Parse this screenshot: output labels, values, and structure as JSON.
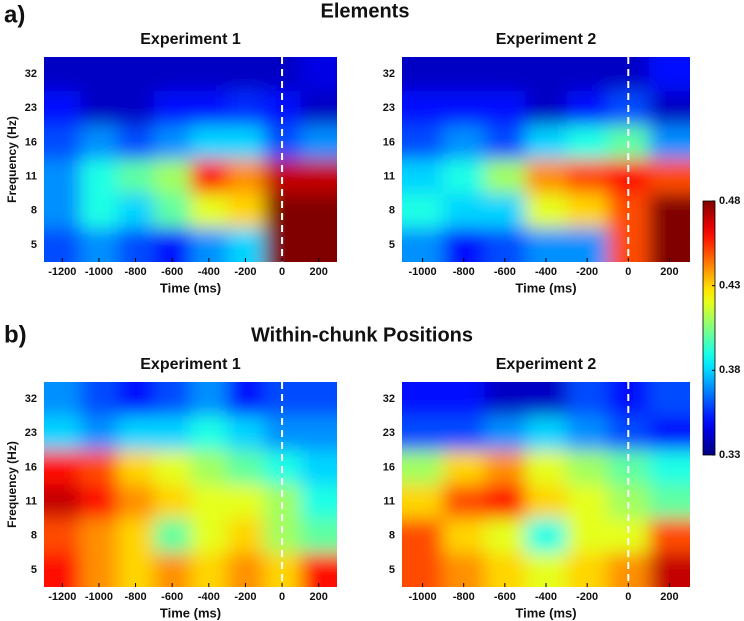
{
  "sections": [
    {
      "label": "a)",
      "title": "Elements"
    },
    {
      "label": "b)",
      "title": "Within-chunk Positions"
    }
  ],
  "colorbar": {
    "lim": [
      0.33,
      0.48
    ],
    "ticks": [
      0.33,
      0.38,
      0.43,
      0.48
    ],
    "colormap": "jet"
  },
  "chart_data": [
    {
      "type": "heatmap",
      "title": "Experiment 1",
      "xlabel": "Time (ms)",
      "ylabel": "Frequency (Hz)",
      "xlim": [
        -1300,
        300
      ],
      "xticks": [
        -1200,
        -1000,
        -800,
        -600,
        -400,
        -200,
        0,
        200
      ],
      "vline": 0,
      "x": [
        -1200,
        -1000,
        -800,
        -600,
        -400,
        -200,
        0,
        200
      ],
      "y": [
        32,
        23,
        16,
        11,
        8,
        5
      ],
      "z": [
        [
          0.34,
          0.34,
          0.34,
          0.34,
          0.34,
          0.34,
          0.34,
          0.345
        ],
        [
          0.35,
          0.34,
          0.34,
          0.35,
          0.35,
          0.355,
          0.35,
          0.34
        ],
        [
          0.36,
          0.37,
          0.36,
          0.37,
          0.38,
          0.38,
          0.36,
          0.37
        ],
        [
          0.37,
          0.39,
          0.4,
          0.41,
          0.46,
          0.44,
          0.47,
          0.47
        ],
        [
          0.37,
          0.39,
          0.38,
          0.4,
          0.42,
          0.43,
          0.48,
          0.48
        ],
        [
          0.36,
          0.37,
          0.36,
          0.35,
          0.37,
          0.38,
          0.48,
          0.48
        ]
      ]
    },
    {
      "type": "heatmap",
      "title": "Experiment 2",
      "xlabel": "Time (ms)",
      "xlim": [
        -1100,
        300
      ],
      "xticks": [
        -1000,
        -800,
        -600,
        -400,
        -200,
        0,
        200
      ],
      "vline": 0,
      "x": [
        -1000,
        -800,
        -600,
        -400,
        -200,
        0,
        200
      ],
      "y": [
        32,
        23,
        16,
        11,
        8,
        5
      ],
      "z": [
        [
          0.34,
          0.34,
          0.34,
          0.34,
          0.34,
          0.34,
          0.35
        ],
        [
          0.35,
          0.35,
          0.35,
          0.34,
          0.35,
          0.36,
          0.34
        ],
        [
          0.36,
          0.37,
          0.36,
          0.38,
          0.39,
          0.4,
          0.37
        ],
        [
          0.38,
          0.39,
          0.41,
          0.44,
          0.45,
          0.46,
          0.45
        ],
        [
          0.39,
          0.38,
          0.38,
          0.42,
          0.43,
          0.45,
          0.48
        ],
        [
          0.37,
          0.35,
          0.36,
          0.37,
          0.37,
          0.45,
          0.48
        ]
      ]
    },
    {
      "type": "heatmap",
      "title": "Experiment 1",
      "xlabel": "Time (ms)",
      "ylabel": "Frequency (Hz)",
      "xlim": [
        -1300,
        300
      ],
      "xticks": [
        -1200,
        -1000,
        -800,
        -600,
        -400,
        -200,
        0,
        200
      ],
      "vline": 0,
      "x": [
        -1200,
        -1000,
        -800,
        -600,
        -400,
        -200,
        0,
        200
      ],
      "y": [
        32,
        23,
        16,
        11,
        8,
        5
      ],
      "z": [
        [
          0.37,
          0.36,
          0.35,
          0.36,
          0.37,
          0.35,
          0.36,
          0.36
        ],
        [
          0.38,
          0.37,
          0.38,
          0.38,
          0.39,
          0.38,
          0.37,
          0.37
        ],
        [
          0.46,
          0.45,
          0.43,
          0.42,
          0.41,
          0.4,
          0.39,
          0.38
        ],
        [
          0.47,
          0.46,
          0.44,
          0.43,
          0.42,
          0.42,
          0.41,
          0.39
        ],
        [
          0.45,
          0.44,
          0.43,
          0.4,
          0.42,
          0.43,
          0.41,
          0.4
        ],
        [
          0.46,
          0.44,
          0.43,
          0.44,
          0.43,
          0.44,
          0.43,
          0.46
        ]
      ]
    },
    {
      "type": "heatmap",
      "title": "Experiment 2",
      "xlabel": "Time (ms)",
      "xlim": [
        -1100,
        300
      ],
      "xticks": [
        -1000,
        -800,
        -600,
        -400,
        -200,
        0,
        200
      ],
      "vline": 0,
      "x": [
        -1000,
        -800,
        -600,
        -400,
        -200,
        0,
        200
      ],
      "y": [
        32,
        23,
        16,
        11,
        8,
        5
      ],
      "z": [
        [
          0.35,
          0.35,
          0.34,
          0.34,
          0.36,
          0.35,
          0.36
        ],
        [
          0.36,
          0.36,
          0.37,
          0.38,
          0.37,
          0.36,
          0.35
        ],
        [
          0.41,
          0.43,
          0.44,
          0.42,
          0.41,
          0.4,
          0.39
        ],
        [
          0.43,
          0.45,
          0.46,
          0.43,
          0.42,
          0.41,
          0.4
        ],
        [
          0.45,
          0.43,
          0.42,
          0.39,
          0.42,
          0.42,
          0.45
        ],
        [
          0.45,
          0.44,
          0.43,
          0.42,
          0.43,
          0.44,
          0.47
        ]
      ]
    }
  ]
}
